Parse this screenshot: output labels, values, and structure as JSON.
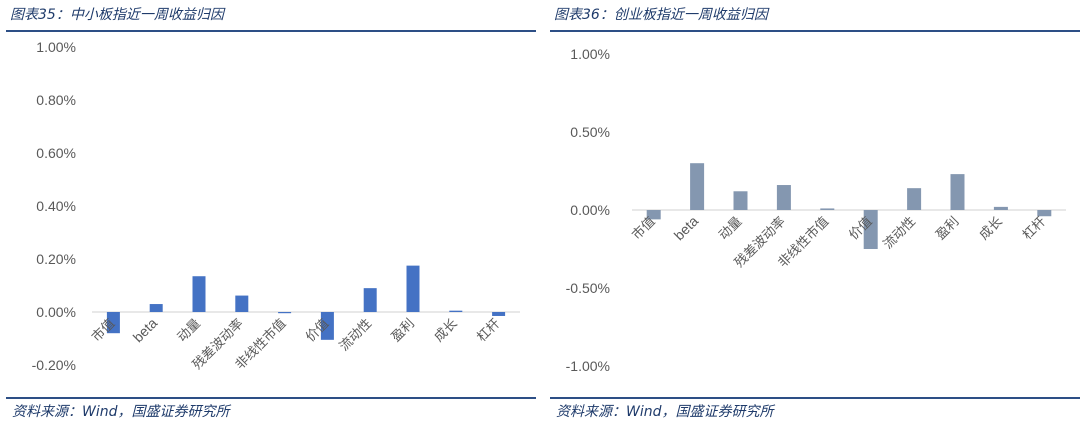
{
  "charts": [
    {
      "title": "图表35：中小板指近一周收益归因",
      "source": "资料来源：Wind，国盛证券研究所",
      "color": "#4472C4"
    },
    {
      "title": "图表36：创业板指近一周收益归因",
      "source": "资料来源：Wind，国盛证券研究所",
      "color": "#8497B0"
    }
  ],
  "chart_data": [
    {
      "type": "bar",
      "categories": [
        "市值",
        "beta",
        "动量",
        "残差波动率",
        "非线性市值",
        "价值",
        "流动性",
        "盈利",
        "成长",
        "杠杆"
      ],
      "values": [
        -0.0008,
        0.0003,
        0.00135,
        0.00062,
        0.0,
        -0.00105,
        0.0009,
        0.00175,
        5e-05,
        -0.00015
      ],
      "ylim": [
        -0.002,
        0.01
      ],
      "yticks": [
        -0.002,
        0.0,
        0.002,
        0.004,
        0.006,
        0.008,
        0.01
      ],
      "ytick_labels": [
        "-0.20%",
        "0.00%",
        "0.20%",
        "0.40%",
        "0.60%",
        "0.80%",
        "1.00%"
      ],
      "grid": false
    },
    {
      "type": "bar",
      "categories": [
        "市值",
        "beta",
        "动量",
        "残差波动率",
        "非线性市值",
        "价值",
        "流动性",
        "盈利",
        "成长",
        "杠杆"
      ],
      "values": [
        -0.0006,
        0.003,
        0.0012,
        0.0016,
        0.0001,
        -0.0025,
        0.0014,
        0.0023,
        0.0002,
        -0.0004
      ],
      "ylim": [
        -0.01,
        0.01
      ],
      "yticks": [
        -0.01,
        -0.005,
        0.0,
        0.005,
        0.01
      ],
      "ytick_labels": [
        "-1.00%",
        "-0.50%",
        "0.00%",
        "0.50%",
        "1.00%"
      ],
      "grid": false
    }
  ]
}
